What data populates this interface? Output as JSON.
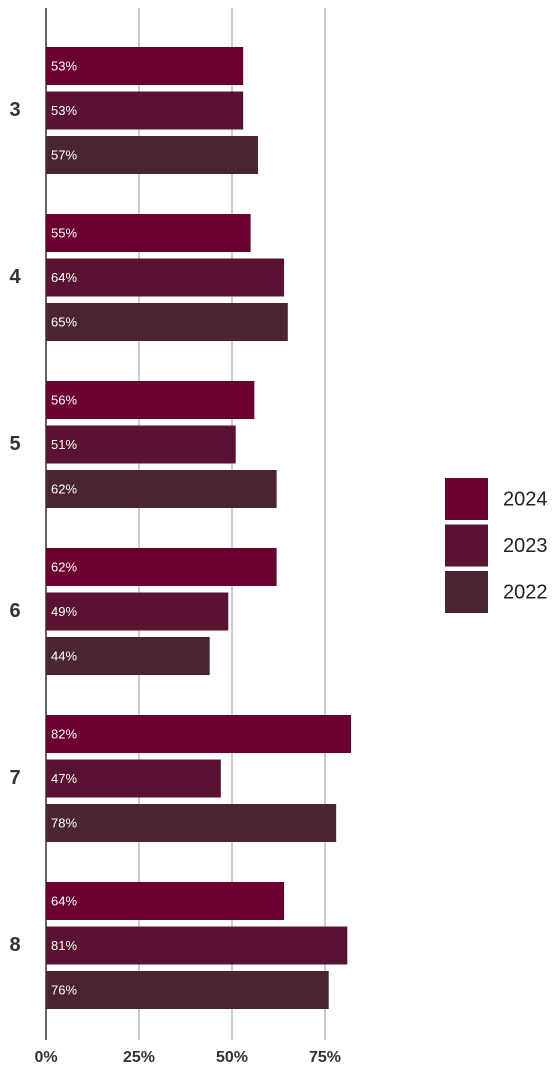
{
  "chart_data": {
    "type": "bar",
    "orientation": "horizontal",
    "categories": [
      "3",
      "4",
      "5",
      "6",
      "7",
      "8"
    ],
    "series": [
      {
        "name": "2024",
        "color": "#6b0030",
        "values": [
          53,
          55,
          56,
          62,
          82,
          64
        ],
        "value_labels": [
          "53%",
          "55%",
          "56%",
          "62%",
          "82%",
          "64%"
        ]
      },
      {
        "name": "2023",
        "color": "#5a1232",
        "values": [
          53,
          64,
          51,
          49,
          47,
          81
        ],
        "value_labels": [
          "53%",
          "64%",
          "51%",
          "49%",
          "47%",
          "81%"
        ]
      },
      {
        "name": "2022",
        "color": "#4a2433",
        "values": [
          57,
          65,
          62,
          44,
          78,
          76
        ],
        "value_labels": [
          "57%",
          "65%",
          "62%",
          "44%",
          "78%",
          "76%"
        ]
      }
    ],
    "xlim": [
      0,
      100
    ],
    "xticks": [
      {
        "value": 0,
        "label": "0%"
      },
      {
        "value": 25,
        "label": "25%"
      },
      {
        "value": 50,
        "label": "50%"
      },
      {
        "value": 75,
        "label": "75%"
      }
    ],
    "grid": true,
    "legend": "right"
  }
}
